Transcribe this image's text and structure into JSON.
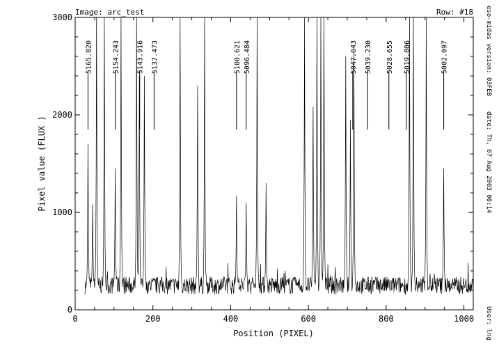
{
  "header": {
    "image_label": "Image: arc_test",
    "row_label": "Row: #18"
  },
  "side_info": {
    "version": "eso-midas version: 03FEB",
    "date": "date: Th, 07 Aug 2003 06:14",
    "user": "User: lng"
  },
  "chart_data": {
    "type": "line",
    "xlabel": "Position (PIXEL)",
    "ylabel": "Pixel value (FLUX )",
    "xlim": [
      0,
      1024
    ],
    "ylim": [
      0,
      3000
    ],
    "xticks": [
      0,
      200,
      400,
      600,
      800,
      1000
    ],
    "yticks": [
      0,
      1000,
      2000,
      3000
    ],
    "grid": false,
    "line_ids": [
      {
        "label": "5165.820",
        "x": 33
      },
      {
        "label": "5154.243",
        "x": 103
      },
      {
        "label": "5143.916",
        "x": 166
      },
      {
        "label": "5137.473",
        "x": 203
      },
      {
        "label": "5100.621",
        "x": 415
      },
      {
        "label": "5096.484",
        "x": 440
      },
      {
        "label": "5047.043",
        "x": 714
      },
      {
        "label": "5039.230",
        "x": 752
      },
      {
        "label": "5028.655",
        "x": 807
      },
      {
        "label": "5019.806",
        "x": 852
      },
      {
        "label": "5002.097",
        "x": 948
      }
    ],
    "peaks": [
      {
        "x": 33,
        "y": 1700
      },
      {
        "x": 45,
        "y": 1080
      },
      {
        "x": 55,
        "y": 3000
      },
      {
        "x": 75,
        "y": 3000
      },
      {
        "x": 103,
        "y": 1450
      },
      {
        "x": 118,
        "y": 3000
      },
      {
        "x": 158,
        "y": 3000
      },
      {
        "x": 165,
        "y": 2400
      },
      {
        "x": 178,
        "y": 2400
      },
      {
        "x": 270,
        "y": 3000
      },
      {
        "x": 315,
        "y": 2300
      },
      {
        "x": 333,
        "y": 3000
      },
      {
        "x": 415,
        "y": 1170
      },
      {
        "x": 440,
        "y": 1100
      },
      {
        "x": 468,
        "y": 3000
      },
      {
        "x": 491,
        "y": 1300
      },
      {
        "x": 590,
        "y": 3000
      },
      {
        "x": 612,
        "y": 2080
      },
      {
        "x": 622,
        "y": 3000
      },
      {
        "x": 632,
        "y": 3000
      },
      {
        "x": 640,
        "y": 3000
      },
      {
        "x": 696,
        "y": 2600
      },
      {
        "x": 708,
        "y": 1950
      },
      {
        "x": 717,
        "y": 2650
      },
      {
        "x": 860,
        "y": 3000
      },
      {
        "x": 870,
        "y": 3000
      },
      {
        "x": 903,
        "y": 3000
      },
      {
        "x": 948,
        "y": 1450
      }
    ],
    "baseline": 250,
    "noise": 90
  }
}
